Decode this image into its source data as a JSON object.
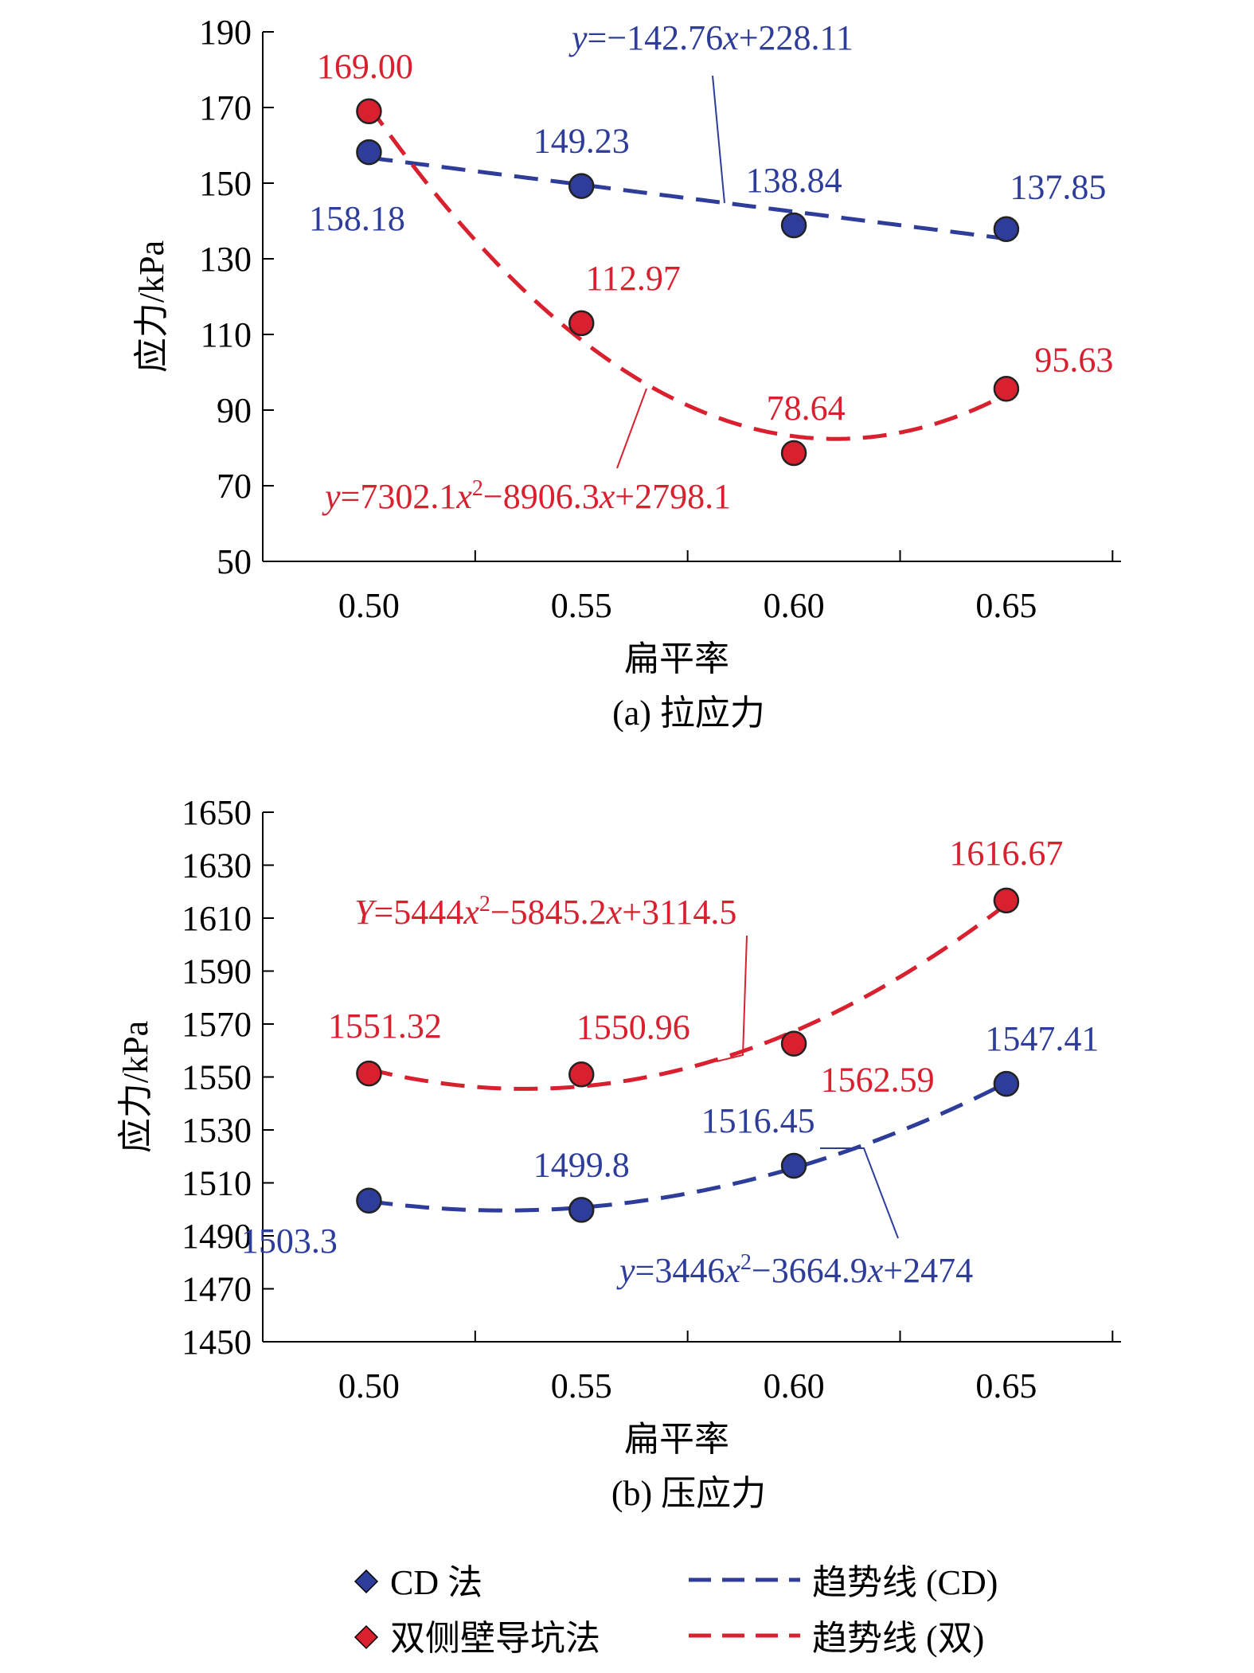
{
  "chart_data": [
    {
      "type": "scatter",
      "panel": "a",
      "caption": "(a) 拉应力",
      "xlabel": "扁平率",
      "ylabel": "应力/kPa",
      "x_ticks": [
        "0.50",
        "0.55",
        "0.60",
        "0.65"
      ],
      "xlim": [
        0.475,
        0.677
      ],
      "ylim": [
        50,
        190
      ],
      "y_ticks": [
        50,
        70,
        90,
        110,
        130,
        150,
        170,
        190
      ],
      "grid": false,
      "series": [
        {
          "name": "CD 法",
          "color": "#2e3d9a",
          "x": [
            0.5,
            0.55,
            0.6,
            0.65
          ],
          "y": [
            158.18,
            149.23,
            138.84,
            137.85
          ],
          "labels": [
            "158.18",
            "149.23",
            "138.84",
            "137.85"
          ],
          "trend": {
            "kind": "linear",
            "a": -142.76,
            "b": 228.11,
            "x_range": [
              0.5,
              0.65
            ]
          },
          "equation_parts": [
            "y",
            "=−142.76",
            "x",
            "+228.11"
          ]
        },
        {
          "name": "双侧壁导坑法",
          "color": "#d8202f",
          "x": [
            0.5,
            0.55,
            0.6,
            0.65
          ],
          "y": [
            169.0,
            112.97,
            78.64,
            95.63
          ],
          "labels": [
            "169.00",
            "112.97",
            "78.64",
            "95.63"
          ],
          "trend": {
            "kind": "quadratic",
            "a": 7302.1,
            "b": -8906.3,
            "c": 2798.1,
            "x_range": [
              0.5,
              0.65
            ]
          },
          "equation_parts": [
            "y",
            "=7302.1",
            "x",
            "2",
            "−8906.3",
            "x",
            "+2798.1"
          ]
        }
      ]
    },
    {
      "type": "scatter",
      "panel": "b",
      "caption": "(b) 压应力",
      "xlabel": "扁平率",
      "ylabel": "应力/kPa",
      "x_ticks": [
        "0.50",
        "0.55",
        "0.60",
        "0.65"
      ],
      "xlim": [
        0.475,
        0.677
      ],
      "ylim": [
        1450,
        1650
      ],
      "y_ticks": [
        1450,
        1470,
        1490,
        1510,
        1530,
        1550,
        1570,
        1590,
        1610,
        1630,
        1650
      ],
      "grid": false,
      "series": [
        {
          "name": "CD 法",
          "color": "#2e3d9a",
          "x": [
            0.5,
            0.55,
            0.6,
            0.65
          ],
          "y": [
            1503.3,
            1499.8,
            1516.45,
            1547.41
          ],
          "labels": [
            "1503.3",
            "1499.8",
            "1516.45",
            "1547.41"
          ],
          "trend": {
            "kind": "quadratic",
            "a": 3446,
            "b": -3664.9,
            "c": 2474,
            "x_range": [
              0.5,
              0.65
            ]
          },
          "equation_parts": [
            "y",
            "=3446",
            "x",
            "2",
            "−3664.9",
            "x",
            "+2474"
          ]
        },
        {
          "name": "双侧壁导坑法",
          "color": "#d8202f",
          "x": [
            0.5,
            0.55,
            0.6,
            0.65
          ],
          "y": [
            1551.32,
            1550.96,
            1562.59,
            1616.67
          ],
          "labels": [
            "1551.32",
            "1550.96",
            "1562.59",
            "1616.67"
          ],
          "trend": {
            "kind": "quadratic",
            "a": 5444,
            "b": -5845.2,
            "c": 3114.5,
            "x_range": [
              0.5,
              0.65
            ]
          },
          "equation_parts": [
            "Y",
            "=5444",
            "x",
            "2",
            "−5845.2",
            "x",
            "+3114.5"
          ]
        }
      ]
    }
  ],
  "legend": {
    "placement": "bottom",
    "items": [
      {
        "label": "CD 法",
        "kind": "marker",
        "color": "#2e3d9a"
      },
      {
        "label": "趋势线 (CD)",
        "kind": "dash",
        "color": "#2e3d9a"
      },
      {
        "label": "双侧壁导坑法",
        "kind": "marker",
        "color": "#d8202f"
      },
      {
        "label": "趋势线 (双)",
        "kind": "dash",
        "color": "#d8202f"
      }
    ]
  }
}
